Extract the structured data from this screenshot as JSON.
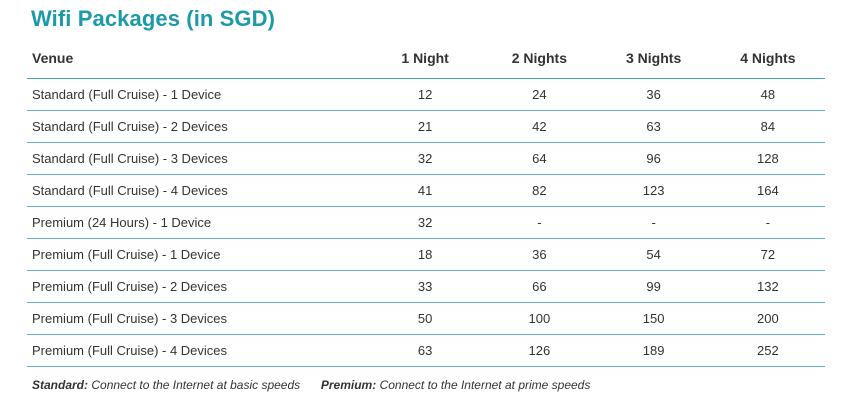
{
  "title": "Wifi Packages (in SGD)",
  "table": {
    "headers": [
      "Venue",
      "1 Night",
      "2 Nights",
      "3 Nights",
      "4 Nights"
    ],
    "rows": [
      [
        "Standard (Full Cruise) - 1 Device",
        "12",
        "24",
        "36",
        "48"
      ],
      [
        "Standard (Full Cruise) - 2 Devices",
        "21",
        "42",
        "63",
        "84"
      ],
      [
        "Standard (Full Cruise) - 3 Devices",
        "32",
        "64",
        "96",
        "128"
      ],
      [
        "Standard (Full Cruise) - 4 Devices",
        "41",
        "82",
        "123",
        "164"
      ],
      [
        "Premium (24 Hours) - 1 Device",
        "32",
        "-",
        "-",
        "-"
      ],
      [
        "Premium (Full Cruise) - 1 Device",
        "18",
        "36",
        "54",
        "72"
      ],
      [
        "Premium (Full Cruise) - 2 Devices",
        "33",
        "66",
        "99",
        "132"
      ],
      [
        "Premium (Full Cruise) - 3 Devices",
        "50",
        "100",
        "150",
        "200"
      ],
      [
        "Premium (Full Cruise) - 4 Devices",
        "63",
        "126",
        "189",
        "252"
      ]
    ]
  },
  "footnote": {
    "standard_term": "Standard:",
    "standard_desc": "Connect to the Internet at basic speeds",
    "premium_term": "Premium:",
    "premium_desc": "Connect to the Internet at prime speeds"
  },
  "colors": {
    "title": "#1c9aaa",
    "rule": "#5fb7c3",
    "text": "#333333"
  }
}
